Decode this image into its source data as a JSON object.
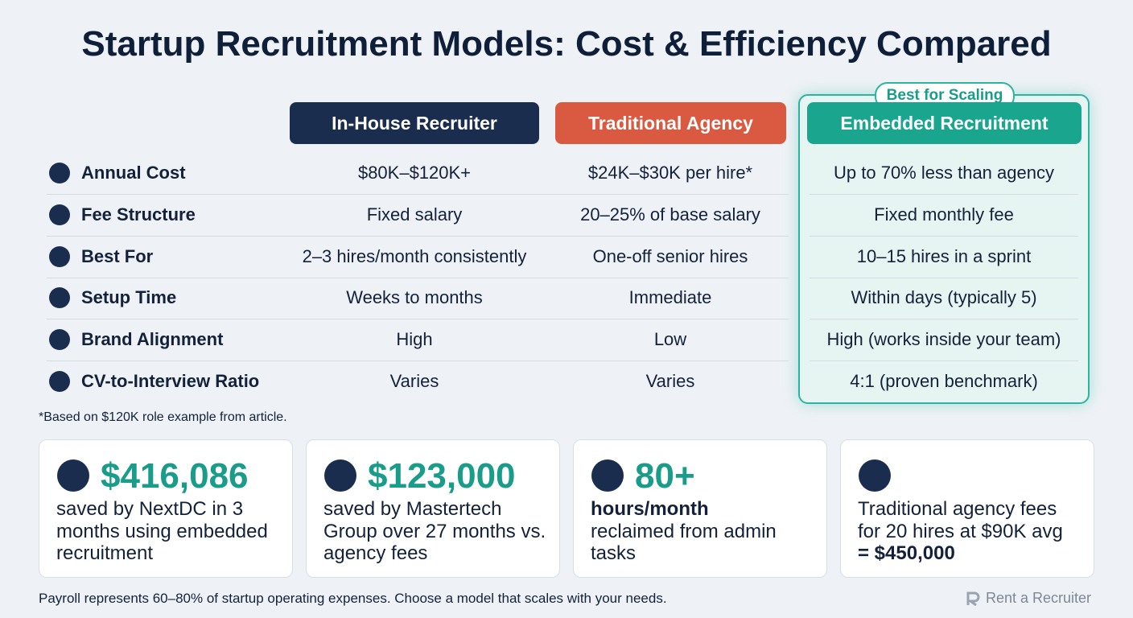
{
  "title": "Startup Recruitment Models: Cost & Efficiency Compared",
  "badge": "Best for Scaling",
  "columns": [
    "In-House Recruiter",
    "Traditional Agency",
    "Embedded Recruitment"
  ],
  "rows": [
    {
      "label": "Annual Cost",
      "values": [
        "$80K–$120K+",
        "$24K–$30K per hire*",
        "Up to 70% less than agency"
      ]
    },
    {
      "label": "Fee Structure",
      "values": [
        "Fixed salary",
        "20–25% of base salary",
        "Fixed monthly fee"
      ]
    },
    {
      "label": "Best For",
      "values": [
        "2–3 hires/month consistently",
        "One-off senior hires",
        "10–15 hires in a sprint"
      ]
    },
    {
      "label": "Setup Time",
      "values": [
        "Weeks to months",
        "Immediate",
        "Within days (typically 5)"
      ]
    },
    {
      "label": "Brand Alignment",
      "values": [
        "High",
        "Low",
        "High (works inside your team)"
      ]
    },
    {
      "label": "CV-to-Interview Ratio",
      "values": [
        "Varies",
        "Varies",
        "4:1 (proven benchmark)"
      ]
    }
  ],
  "footnote": "*Based on $120K role example from article.",
  "cards": [
    {
      "value": "$416,086",
      "text": "saved by NextDC in 3 months using embedded recruitment"
    },
    {
      "value": "$123,000",
      "text": "saved by Mastertech Group over 27 months vs. agency fees"
    },
    {
      "value": "80+",
      "bold": "hours/month",
      "text": "reclaimed from admin tasks"
    },
    {
      "text": "Traditional agency fees for 20 hires at $90K avg",
      "bold": "= $450,000"
    }
  ],
  "footer": "Payroll represents 60–80% of startup operating expenses. Choose a model that scales with your needs.",
  "brand": "Rent a Recruiter"
}
